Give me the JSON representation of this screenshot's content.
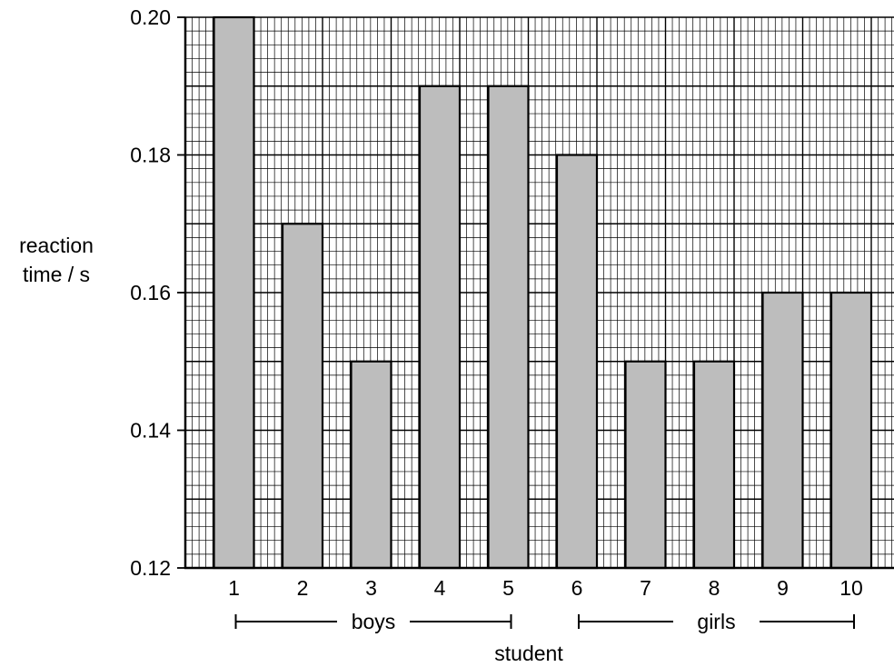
{
  "chart_data": {
    "type": "bar",
    "title": "",
    "xlabel": "student",
    "ylabel_lines": [
      "reaction",
      "time / s"
    ],
    "categories": [
      "1",
      "2",
      "3",
      "4",
      "5",
      "6",
      "7",
      "8",
      "9",
      "10"
    ],
    "values": [
      0.2,
      0.17,
      0.15,
      0.19,
      0.19,
      0.18,
      0.15,
      0.15,
      0.16,
      0.16
    ],
    "ylim": [
      0.12,
      0.2
    ],
    "yticks": [
      "0.12",
      "0.14",
      "0.16",
      "0.18",
      "0.20"
    ],
    "groups": [
      {
        "label": "boys",
        "from": "1",
        "to": "5"
      },
      {
        "label": "girls",
        "from": "6",
        "to": "10"
      }
    ],
    "grid": true,
    "colors": {
      "bar": "#bdbdbd",
      "grid": "#000000"
    }
  }
}
